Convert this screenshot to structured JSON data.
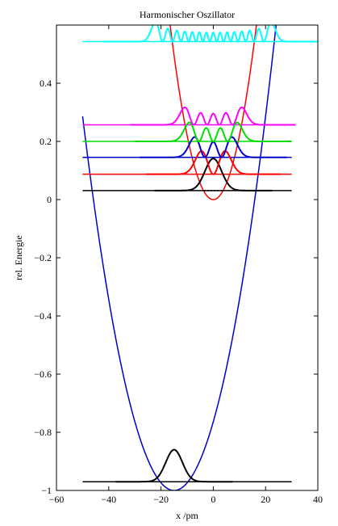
{
  "chart_data": {
    "type": "line",
    "title": "Harmonischer Oszillator",
    "xlabel": "x /pm",
    "ylabel": "rel. Energie",
    "xlim": [
      -60,
      40
    ],
    "ylim": [
      -1.0,
      0.6
    ],
    "xticks": [
      -60,
      -40,
      -20,
      0,
      20,
      40
    ],
    "yticks": [
      -1,
      -0.8,
      -0.6,
      -0.4,
      -0.2,
      0,
      0.2,
      0.4
    ],
    "xtick_labels": [
      "−60",
      "−40",
      "−20",
      "0",
      "20",
      "40"
    ],
    "ytick_labels": [
      "−1",
      "−0.8",
      "−0.6",
      "−0.4",
      "−0.2",
      "0",
      "0.2",
      "0.4"
    ],
    "grid": false,
    "potentials": [
      {
        "center": 0,
        "minimum": 0,
        "curvature": 0.0022,
        "color": "#ff0000"
      },
      {
        "center": -15,
        "minimum": -1.0,
        "curvature": 0.00105,
        "color": "#0000cc",
        "x_range": [
          -50,
          30
        ]
      }
    ],
    "level_lines": [
      {
        "energy": 0.031,
        "x_range": [
          -50,
          30
        ],
        "color": "#000000"
      },
      {
        "energy": 0.087,
        "x_range": [
          -50,
          30
        ],
        "color": "#ff0000"
      },
      {
        "energy": 0.145,
        "x_range": [
          -50,
          30
        ],
        "color": "#0000cc"
      },
      {
        "energy": 0.2,
        "x_range": [
          -50,
          30
        ],
        "color": "#00dd00"
      },
      {
        "energy": 0.257,
        "x_range": [
          -50,
          30
        ],
        "color": "#ff00ff"
      },
      {
        "energy": 0.543,
        "x_range": [
          -50,
          30
        ],
        "color": "#00ffff"
      },
      {
        "energy": -0.97,
        "x_range": [
          -50,
          30
        ],
        "color": "#000000"
      }
    ],
    "wavefunctions": [
      {
        "n": 0,
        "energy": 0.031,
        "center": 0,
        "width": 4.5,
        "amplitude": 0.11,
        "color": "#000000"
      },
      {
        "n": 1,
        "energy": 0.087,
        "center": 0,
        "width": 4.5,
        "amplitude": 0.08,
        "color": "#ff0000"
      },
      {
        "n": 2,
        "energy": 0.145,
        "center": 0,
        "width": 4.5,
        "amplitude": 0.07,
        "color": "#0000cc"
      },
      {
        "n": 3,
        "energy": 0.2,
        "center": 0,
        "width": 4.5,
        "amplitude": 0.065,
        "color": "#00dd00"
      },
      {
        "n": 4,
        "energy": 0.257,
        "center": 0,
        "width": 4.5,
        "amplitude": 0.06,
        "color": "#ff00ff"
      },
      {
        "n": 14,
        "energy": 0.543,
        "center": 0,
        "width": 4.5,
        "amplitude": 0.07,
        "color": "#00ffff"
      },
      {
        "n": 0,
        "energy": -0.97,
        "center": -15,
        "width": 4.5,
        "amplitude": 0.11,
        "color": "#000000"
      }
    ],
    "dotted_lines": [
      {
        "energy": 0.031,
        "x_range": [
          -3.5,
          3.5
        ],
        "color": "#000000"
      },
      {
        "energy": -0.97,
        "x_range": [
          -18.5,
          -11.5
        ],
        "color": "#000000"
      }
    ]
  }
}
